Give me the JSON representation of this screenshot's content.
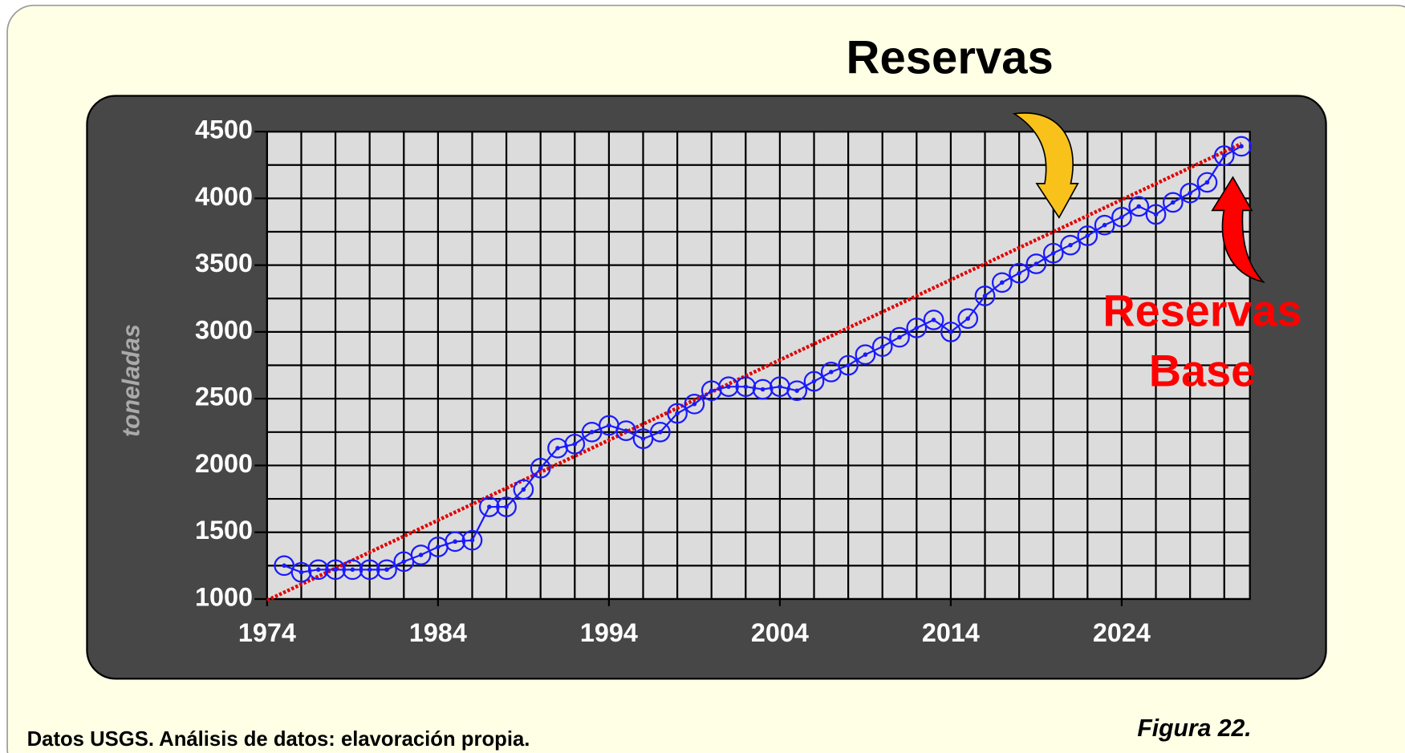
{
  "chart_data": {
    "type": "line",
    "ylabel": "toneladas",
    "annotations": [
      {
        "lines": [
          "Reservas"
        ],
        "color": "#000000"
      },
      {
        "lines": [
          "Reservas",
          "Base"
        ],
        "color": "#ff0000"
      }
    ],
    "footer": "Datos USGS. Análisis de datos: elavoración propia.",
    "figure_label": "Figura 22.",
    "xlim": [
      1974,
      2031.5
    ],
    "xticks": [
      1974,
      1984,
      1994,
      2004,
      2014,
      2024
    ],
    "xminorticks": [
      1976,
      1978,
      1980,
      1982,
      1986,
      1988,
      1990,
      1992,
      1996,
      1998,
      2000,
      2002,
      2006,
      2008,
      2010,
      2012,
      2016,
      2018,
      2020,
      2022,
      2026,
      2028,
      2030
    ],
    "ylim": [
      1000,
      4500
    ],
    "yticks": [
      1000,
      1500,
      2000,
      2500,
      3000,
      3500,
      4000,
      4500
    ],
    "yminorticks": [
      1250,
      1750,
      2250,
      2750,
      3250,
      3750,
      4250
    ],
    "grid": true,
    "series": [
      {
        "color": "#e00000",
        "x": [
          1974,
          2031
        ],
        "values": [
          990,
          4410
        ]
      },
      {
        "color": "#1a1aff",
        "x": [
          1975,
          1976,
          1977,
          1978,
          1979,
          1980,
          1981,
          1982,
          1983,
          1984,
          1985,
          1986,
          1987,
          1988,
          1989,
          1990,
          1991,
          1992,
          1993,
          1994,
          1995,
          1996,
          1997,
          1998,
          1999,
          2000,
          2001,
          2002,
          2003,
          2004,
          2005,
          2006,
          2007,
          2008,
          2009,
          2010,
          2011,
          2012,
          2013,
          2014,
          2015,
          2016,
          2017,
          2018,
          2019,
          2020,
          2021,
          2022,
          2023,
          2024,
          2025,
          2026,
          2027,
          2028,
          2029,
          2030,
          2031
        ],
        "values": [
          1250,
          1200,
          1220,
          1220,
          1220,
          1220,
          1220,
          1280,
          1330,
          1390,
          1430,
          1440,
          1690,
          1690,
          1820,
          1980,
          2130,
          2160,
          2250,
          2300,
          2260,
          2200,
          2250,
          2390,
          2460,
          2560,
          2590,
          2590,
          2570,
          2590,
          2560,
          2630,
          2700,
          2750,
          2830,
          2890,
          2960,
          3030,
          3090,
          3000,
          3100,
          3270,
          3370,
          3440,
          3510,
          3590,
          3650,
          3720,
          3800,
          3860,
          3940,
          3880,
          3970,
          4040,
          4120,
          4320,
          4390
        ]
      }
    ]
  }
}
